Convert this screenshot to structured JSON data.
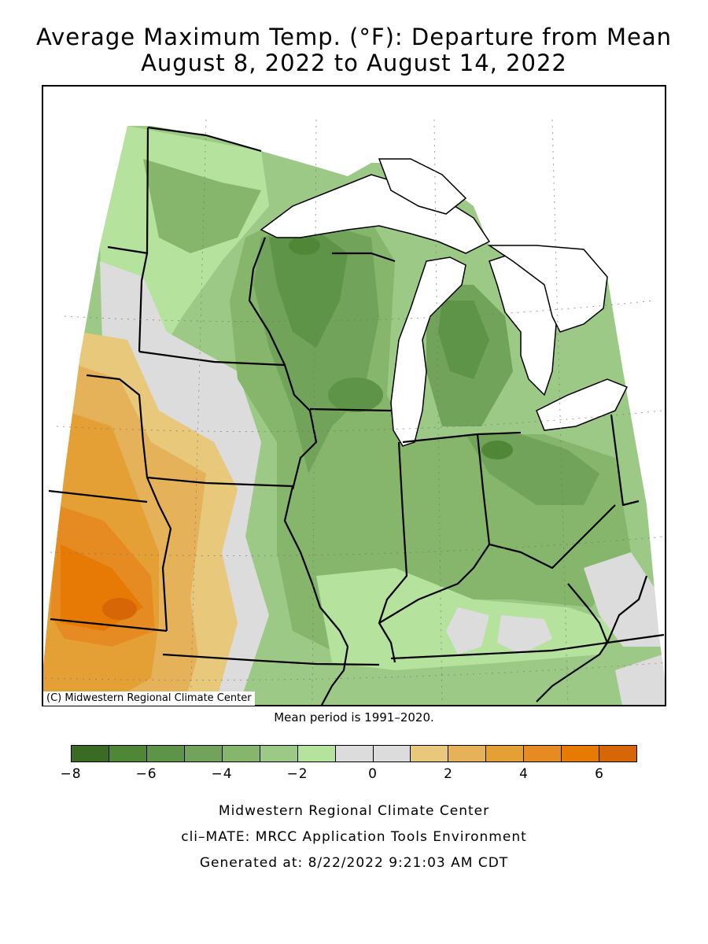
{
  "title_line1": "Average Maximum Temp. (°F): Departure from Mean",
  "title_line2": "August 8, 2022 to August 14, 2022",
  "copyright": "(C) Midwestern Regional Climate Center",
  "mean_period": "Mean period is 1991–2020.",
  "legend": {
    "colors": [
      "#3a6b25",
      "#4f8737",
      "#5e9447",
      "#71a35a",
      "#86b56c",
      "#9dc987",
      "#b5e29c",
      "#dcdcdc",
      "#dcdcdc",
      "#e8c87a",
      "#e5b25a",
      "#e5a035",
      "#e68a22",
      "#e77a05",
      "#d76607"
    ],
    "ticks": [
      "−8",
      "−6",
      "−4",
      "−2",
      "0",
      "2",
      "4",
      "6"
    ]
  },
  "credits": {
    "line1": "Midwestern Regional Climate Center",
    "line2": "cli–MATE: MRCC Application Tools Environment",
    "line3": "Generated at: 8/22/2022 9:21:03 AM CDT"
  }
}
